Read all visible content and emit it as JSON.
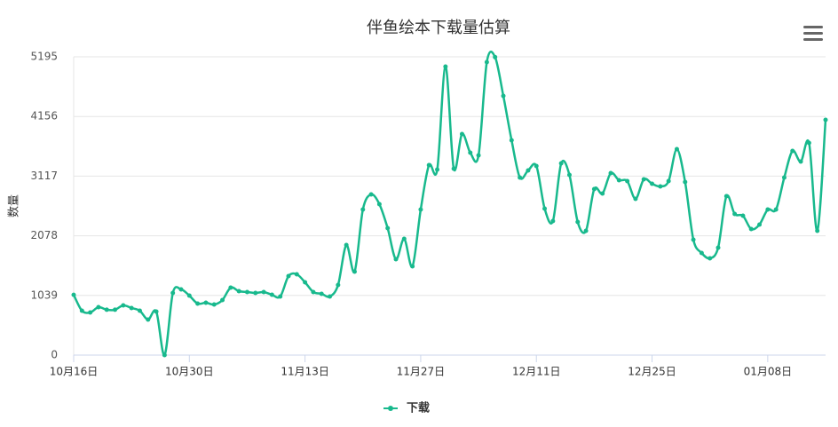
{
  "chart_data": {
    "type": "line",
    "title": "伴鱼绘本下载量估算",
    "y_label": "数量",
    "categories": [
      "10月16日",
      null,
      null,
      null,
      null,
      null,
      null,
      null,
      null,
      null,
      null,
      null,
      null,
      null,
      "10月30日",
      null,
      null,
      null,
      null,
      null,
      null,
      null,
      null,
      null,
      null,
      null,
      null,
      null,
      "11月13日",
      null,
      null,
      null,
      null,
      null,
      null,
      null,
      null,
      null,
      null,
      null,
      null,
      null,
      "11月27日",
      null,
      null,
      null,
      null,
      null,
      null,
      null,
      null,
      null,
      null,
      null,
      null,
      null,
      "12月11日",
      null,
      null,
      null,
      null,
      null,
      null,
      null,
      null,
      null,
      null,
      null,
      null,
      null,
      "12月25日",
      null,
      null,
      null,
      null,
      null,
      null,
      null,
      null,
      null,
      null,
      null,
      null,
      null,
      "01月08日",
      null,
      null,
      null,
      null,
      null,
      null,
      null
    ],
    "series": [
      {
        "name": "下载",
        "color": "#18b98d",
        "values": [
          1050,
          773,
          742,
          835,
          790,
          790,
          866,
          820,
          773,
          618,
          757,
          0,
          1082,
          1144,
          1036,
          897,
          912,
          881,
          959,
          1175,
          1113,
          1098,
          1082,
          1098,
          1051,
          1020,
          1376,
          1407,
          1268,
          1098,
          1067,
          1020,
          1221,
          1917,
          1453,
          2535,
          2798,
          2628,
          2211,
          1670,
          2025,
          1546,
          2535,
          3308,
          3231,
          5025,
          3247,
          3850,
          3525,
          3479,
          5102,
          5190,
          4514,
          3741,
          3092,
          3216,
          3293,
          2551,
          2334,
          3339,
          3138,
          2319,
          2164,
          2891,
          2814,
          3169,
          3046,
          3030,
          2721,
          3061,
          2984,
          2937,
          3030,
          3587,
          3015,
          2010,
          1778,
          1685,
          1871,
          2767,
          2458,
          2427,
          2195,
          2273,
          2535,
          2535,
          3092,
          3556,
          3370,
          3695,
          2164,
          4097
        ]
      }
    ],
    "ylim": [
      0,
      5195
    ],
    "yticks": [
      0,
      1039,
      2078,
      3117,
      4156,
      5195
    ],
    "grid": true,
    "legend": "bottom"
  }
}
